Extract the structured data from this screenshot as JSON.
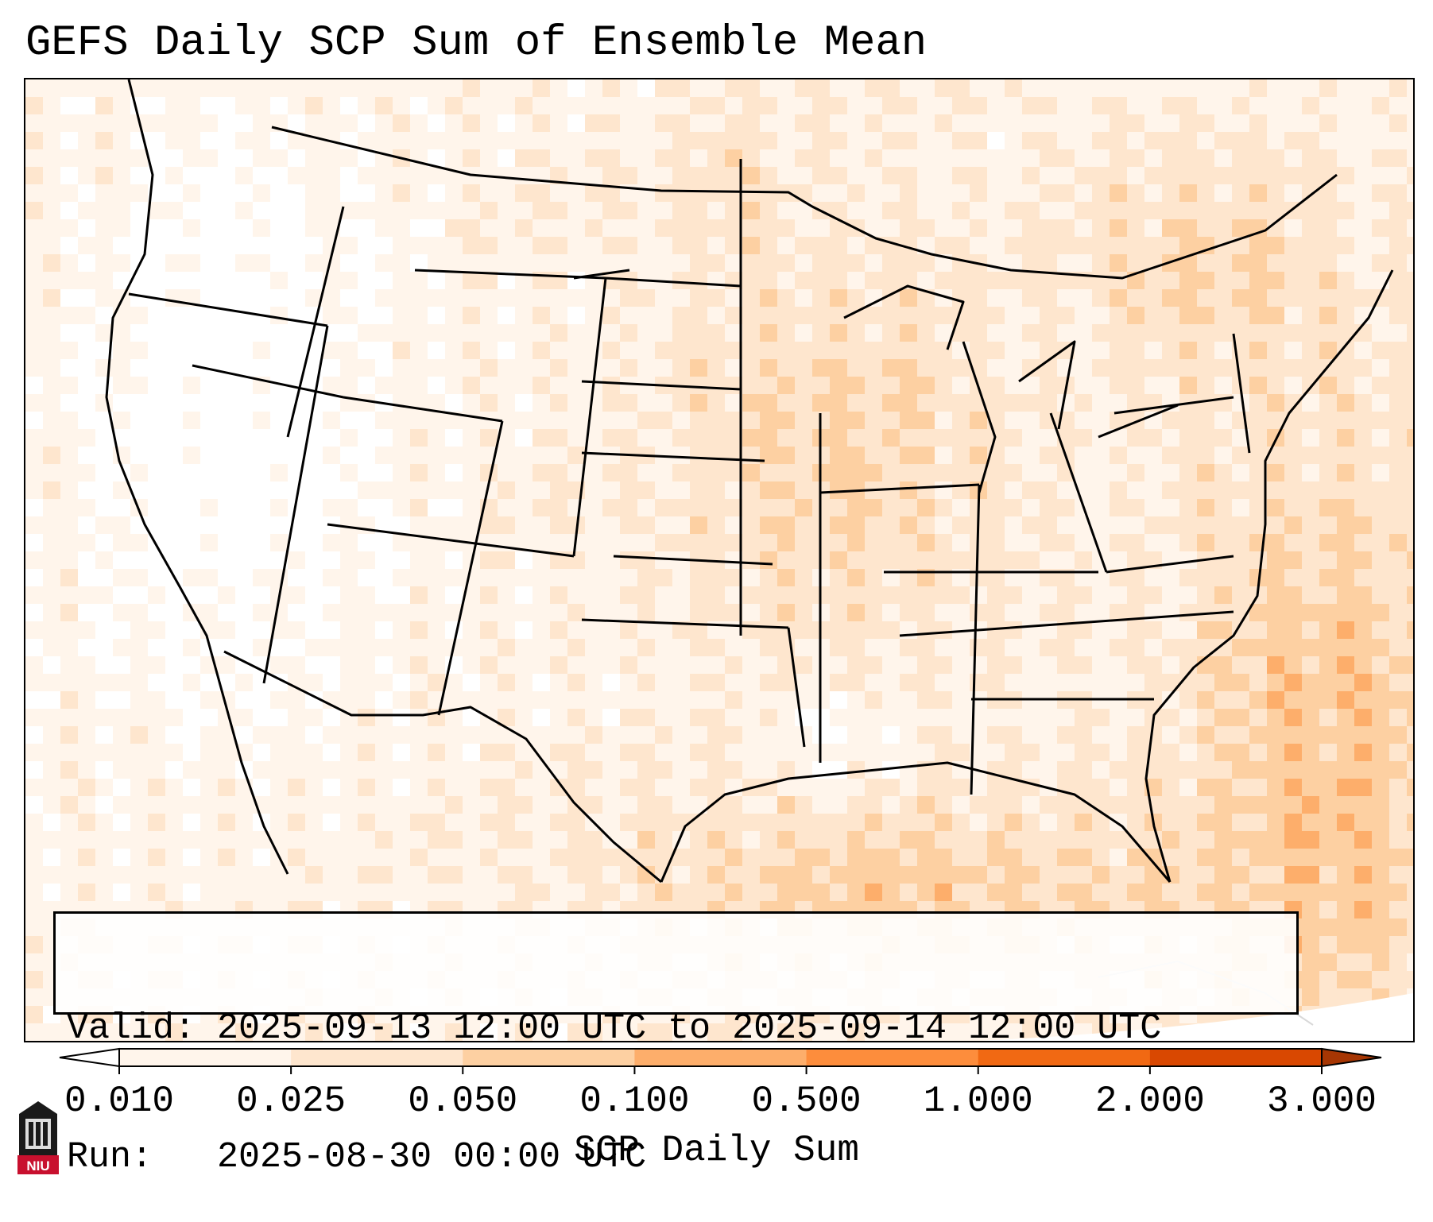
{
  "title": "GEFS Daily SCP Sum of Ensemble Mean",
  "info": {
    "valid_line": "Valid: 2025-09-13 12:00 UTC to 2025-09-14 12:00 UTC",
    "run_line": "Run:   2025-08-30 00:00 UTC"
  },
  "colorbar": {
    "label": "SCP Daily Sum",
    "ticks": [
      "0.010",
      "0.025",
      "0.050",
      "0.100",
      "0.500",
      "1.000",
      "2.000",
      "3.000"
    ],
    "colors": [
      "#fff5eb",
      "#fee6ce",
      "#fdd0a2",
      "#fdae6b",
      "#fd8d3c",
      "#f16913",
      "#d94801"
    ],
    "under_color": "#ffffff",
    "over_color": "#a63603"
  },
  "logo": {
    "text": "NIU",
    "color": "#c8102e"
  }
}
